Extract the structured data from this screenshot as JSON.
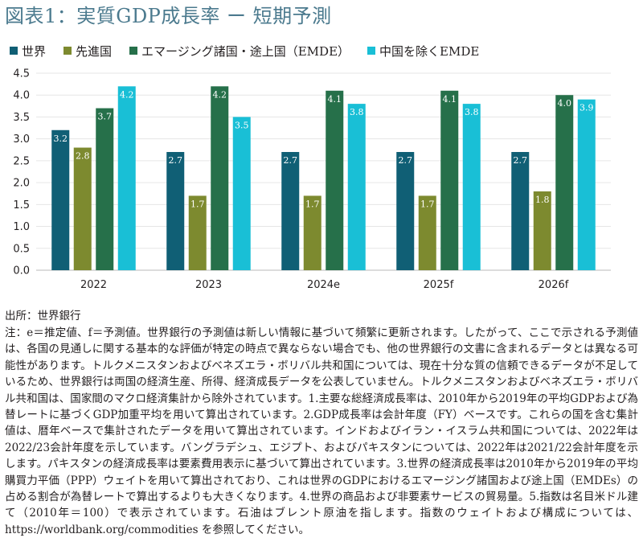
{
  "title": "図表1：実質GDP成長率 ー 短期予測",
  "chart_data": {
    "type": "bar",
    "categories": [
      "2022",
      "2023",
      "2024e",
      "2025f",
      "2026f"
    ],
    "series": [
      {
        "name": "世界",
        "color": "#105f75",
        "values": [
          3.2,
          2.7,
          2.7,
          2.7,
          2.7
        ],
        "labels": [
          "3.2",
          "2.7",
          "2.7",
          "2.7",
          "2.7"
        ]
      },
      {
        "name": "先進国",
        "color": "#7d8a2f",
        "values": [
          2.8,
          1.7,
          1.7,
          1.7,
          1.8
        ],
        "labels": [
          "2.8",
          "1.7",
          "1.7",
          "1.7",
          "1.8"
        ]
      },
      {
        "name": "エマージング諸国・途上国（EMDE）",
        "color": "#26704a",
        "values": [
          3.7,
          4.2,
          4.1,
          4.1,
          4.0
        ],
        "labels": [
          "3.7",
          "4.2",
          "4.1",
          "4.1",
          "4.0"
        ]
      },
      {
        "name": "中国を除くEMDE",
        "color": "#19bfd6",
        "values": [
          4.2,
          3.5,
          3.8,
          3.8,
          3.9
        ],
        "labels": [
          "4.2",
          "3.5",
          "3.8",
          "3.8",
          "3.9"
        ]
      }
    ],
    "yticks": [
      "0.0",
      "0.5",
      "1.0",
      "1.5",
      "2.0",
      "2.5",
      "3.0",
      "3.5",
      "4.0",
      "4.5"
    ],
    "ylim": [
      0,
      4.5
    ],
    "grid": true,
    "legend": "top"
  },
  "source": "出所：世界銀行",
  "notes": "注：e＝推定値、f＝予測値。世界銀行の予測値は新しい情報に基づいて頻繁に更新されます。したがって、ここで示される予測値は、各国の見通しに関する基本的な評価が特定の時点で異ならない場合でも、他の世界銀行の文書に含まれるデータとは異なる可能性があります。トルクメニスタンおよびベネズエラ・ボリバル共和国については、現在十分な質の信頼できるデータが不足しているため、世界銀行は両国の経済生産、所得、経済成長データを公表していません。トルクメニスタンおよびベネズエラ・ボリバル共和国は、国家間のマクロ経済集計から除外されています。1.主要な総経済成長率は、2010年から2019年の平均GDPおよび為替レートに基づくGDP加重平均を用いて算出されています。2.GDP成長率は会計年度（FY）ベースです。これらの国を含む集計値は、暦年ベースで集計されたデータを用いて算出されています。インドおよびイラン・イスラム共和国については、2022年は2022/23会計年度を示しています。バングラデシュ、エジプト、およびパキスタンについては、2022年は2021/22会計年度を示します。パキスタンの経済成長率は要素費用表示に基づいて算出されています。3.世界の経済成長率は2010年から2019年の平均購買力平価（PPP）ウェイトを用いて算出されており、これは世界のGDPにおけるエマージング諸国および途上国（EMDEs）の占める割合が為替レートで算出するよりも大きくなります。4.世界の商品および非要素サービスの貿易量。5.指数は名目米ドル建て（2010年＝100）で表示されています。石油はブレント原油を指します。指数のウェイトおよび構成については、https://worldbank.org/commodities を参照してください。"
}
